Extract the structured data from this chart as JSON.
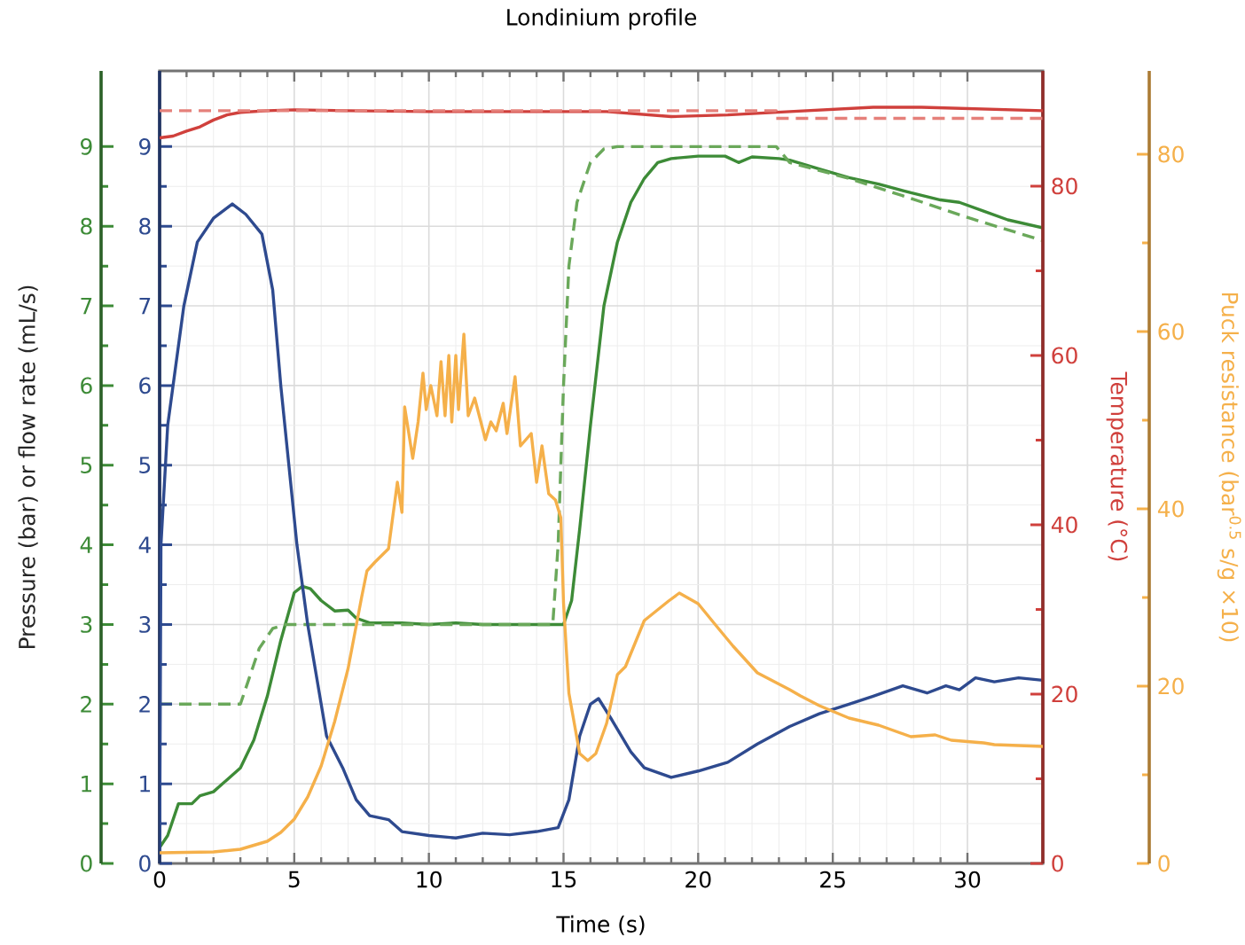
{
  "chart_data": [
    {
      "type": "line",
      "title": "Londinium profile",
      "xlabel": "Time (s)",
      "ylabel": "Pressure (bar) or flow rate (mL/s)",
      "xlim": [
        0,
        32.8
      ],
      "xticks": [
        0,
        5,
        10,
        15,
        20,
        25,
        30
      ],
      "ylim": [
        0,
        9.95
      ],
      "yticks": [
        0,
        1,
        2,
        3,
        4,
        5,
        6,
        7,
        8,
        9
      ],
      "y2lim": [
        0,
        9.95
      ],
      "y2ticks": [
        0,
        1,
        2,
        3,
        4,
        5,
        6,
        7,
        8,
        9
      ],
      "grid": true,
      "series": [
        {
          "axis": "y",
          "color": "#3d8b37",
          "line_style": "solid",
          "x": [
            0,
            0.3,
            0.7,
            1.2,
            1.5,
            2,
            2.5,
            3,
            3.5,
            4,
            4.5,
            5,
            5.3,
            5.6,
            6,
            6.5,
            7,
            7.3,
            7.8,
            9,
            10,
            11,
            12,
            13,
            14,
            15,
            15.3,
            15.6,
            16,
            16.5,
            17,
            17.5,
            18,
            18.5,
            19,
            20,
            21,
            21.5,
            22,
            23,
            23.4,
            24.5,
            25.6,
            26.7,
            27.9,
            29,
            29.7,
            30.6,
            31.5,
            32.8
          ],
          "values": [
            0.2,
            0.35,
            0.75,
            0.75,
            0.85,
            0.9,
            1.05,
            1.2,
            1.55,
            2.1,
            2.8,
            3.4,
            3.48,
            3.45,
            3.3,
            3.17,
            3.18,
            3.08,
            3.02,
            3.02,
            3,
            3.02,
            3,
            3,
            3,
            3,
            3.3,
            4.2,
            5.5,
            7,
            7.8,
            8.3,
            8.6,
            8.8,
            8.85,
            8.88,
            8.88,
            8.8,
            8.87,
            8.85,
            8.83,
            8.72,
            8.61,
            8.53,
            8.42,
            8.33,
            8.3,
            8.19,
            8.08,
            7.98
          ]
        },
        {
          "axis": "y",
          "color": "#6aa85a",
          "line_style": "dashed",
          "x": [
            0,
            3,
            3.3,
            3.7,
            4.2,
            4.7,
            14.6,
            14.8,
            15,
            15.2,
            15.5,
            16,
            16.5,
            17,
            22.9,
            23.4,
            25.6,
            27.9,
            30.1,
            32.8
          ],
          "values": [
            2,
            2,
            2.3,
            2.7,
            2.95,
            3,
            3,
            4,
            6,
            7.5,
            8.3,
            8.8,
            8.97,
            9,
            9,
            8.8,
            8.6,
            8.35,
            8.1,
            7.82
          ]
        },
        {
          "axis": "y2",
          "color": "#2e4a8f",
          "line_style": "solid",
          "x": [
            0,
            0.05,
            0.3,
            0.9,
            1.4,
            2,
            2.7,
            3.2,
            3.8,
            4.2,
            4.5,
            5.1,
            5.5,
            6,
            6.2,
            6.8,
            7.3,
            7.8,
            8.5,
            9,
            10,
            11,
            12,
            13,
            14,
            14.8,
            15.2,
            15.6,
            16,
            16.3,
            16.8,
            17.5,
            18,
            19,
            20,
            21.1,
            22.2,
            23.4,
            24.5,
            25.6,
            26.5,
            27.6,
            28.5,
            29.2,
            29.7,
            30.3,
            31,
            31.9,
            32.8
          ],
          "values": [
            0.1,
            4,
            5.5,
            7,
            7.8,
            8.1,
            8.28,
            8.15,
            7.9,
            7.2,
            6,
            4,
            3,
            2,
            1.6,
            1.2,
            0.8,
            0.6,
            0.55,
            0.4,
            0.35,
            0.32,
            0.38,
            0.36,
            0.4,
            0.45,
            0.8,
            1.6,
            2,
            2.07,
            1.8,
            1.4,
            1.2,
            1.08,
            1.16,
            1.27,
            1.5,
            1.72,
            1.88,
            2,
            2.1,
            2.23,
            2.14,
            2.23,
            2.18,
            2.33,
            2.28,
            2.33,
            2.3
          ]
        }
      ]
    },
    {
      "type": "line",
      "ylabel": "Temperature (°C)",
      "y2label": "Puck resistance (bar$^{0.5}$ s/g ×10)",
      "xlim": [
        0,
        32.8
      ],
      "tick_labels": "y",
      "ylim": [
        0,
        93.6
      ],
      "yticks": [
        0,
        20,
        40,
        60,
        80
      ],
      "y2lim": [
        0,
        89.4
      ],
      "y2ticks": [
        0,
        20,
        40,
        60,
        80
      ],
      "series": [
        {
          "axis": "y",
          "color": "#d0403c",
          "line_style": "solid",
          "x": [
            0,
            0.5,
            1,
            1.5,
            2,
            2.5,
            3,
            4,
            5,
            7,
            10,
            15,
            16.6,
            19,
            21.1,
            23.4,
            26.5,
            28.3,
            32.8
          ],
          "values": [
            85.7,
            85.9,
            86.5,
            87,
            87.8,
            88.4,
            88.7,
            88.9,
            89,
            88.9,
            88.8,
            88.8,
            88.8,
            88.2,
            88.4,
            88.8,
            89.3,
            89.3,
            88.9
          ]
        },
        {
          "axis": "y",
          "color": "#e5807a",
          "line_style": "dashed",
          "x": [
            0,
            22.9,
            22.9,
            32.8
          ],
          "values": [
            88.9,
            88.9,
            88,
            88
          ]
        },
        {
          "axis": "y2",
          "color": "#f5b04a",
          "line_style": "solid",
          "x": [
            0,
            2,
            3,
            4,
            4.5,
            5,
            5.5,
            6,
            6.5,
            7,
            7.5,
            7.7,
            8,
            8.5,
            8.83,
            9,
            9.1,
            9.4,
            9.6,
            9.78,
            9.9,
            10.07,
            10.3,
            10.45,
            10.6,
            10.74,
            10.85,
            11,
            11.1,
            11.3,
            11.46,
            11.7,
            12.1,
            12.3,
            12.5,
            12.76,
            12.9,
            13.2,
            13.4,
            13.8,
            14,
            14.2,
            14.45,
            14.7,
            14.9,
            15,
            15.2,
            15.6,
            15.9,
            16.2,
            16.6,
            17,
            17.3,
            18,
            18.9,
            19.3,
            20,
            20.7,
            21.3,
            22.2,
            23.4,
            23.8,
            24.5,
            25.6,
            26.7,
            27.9,
            28.8,
            29.4,
            30.6,
            31,
            32.8
          ],
          "values": [
            1.2,
            1.3,
            1.6,
            2.5,
            3.5,
            5,
            7.5,
            11,
            16,
            22,
            30,
            33,
            34,
            35.5,
            43,
            39.6,
            51.5,
            45.7,
            49.8,
            55.3,
            51.2,
            53.9,
            50.5,
            56.6,
            50.5,
            57.3,
            49.8,
            57.3,
            51.2,
            59.7,
            50.5,
            52.5,
            47.8,
            49.8,
            48.8,
            51.9,
            48.5,
            54.9,
            47.1,
            48.5,
            43,
            47.1,
            41.7,
            41,
            39,
            29.4,
            19.2,
            12.4,
            11.6,
            12.4,
            15.8,
            21.3,
            22.2,
            27.4,
            29.6,
            30.5,
            29.3,
            26.7,
            24.5,
            21.5,
            19.6,
            18.9,
            17.8,
            16.4,
            15.6,
            14.3,
            14.5,
            13.9,
            13.6,
            13.4,
            13.2
          ]
        }
      ]
    }
  ]
}
